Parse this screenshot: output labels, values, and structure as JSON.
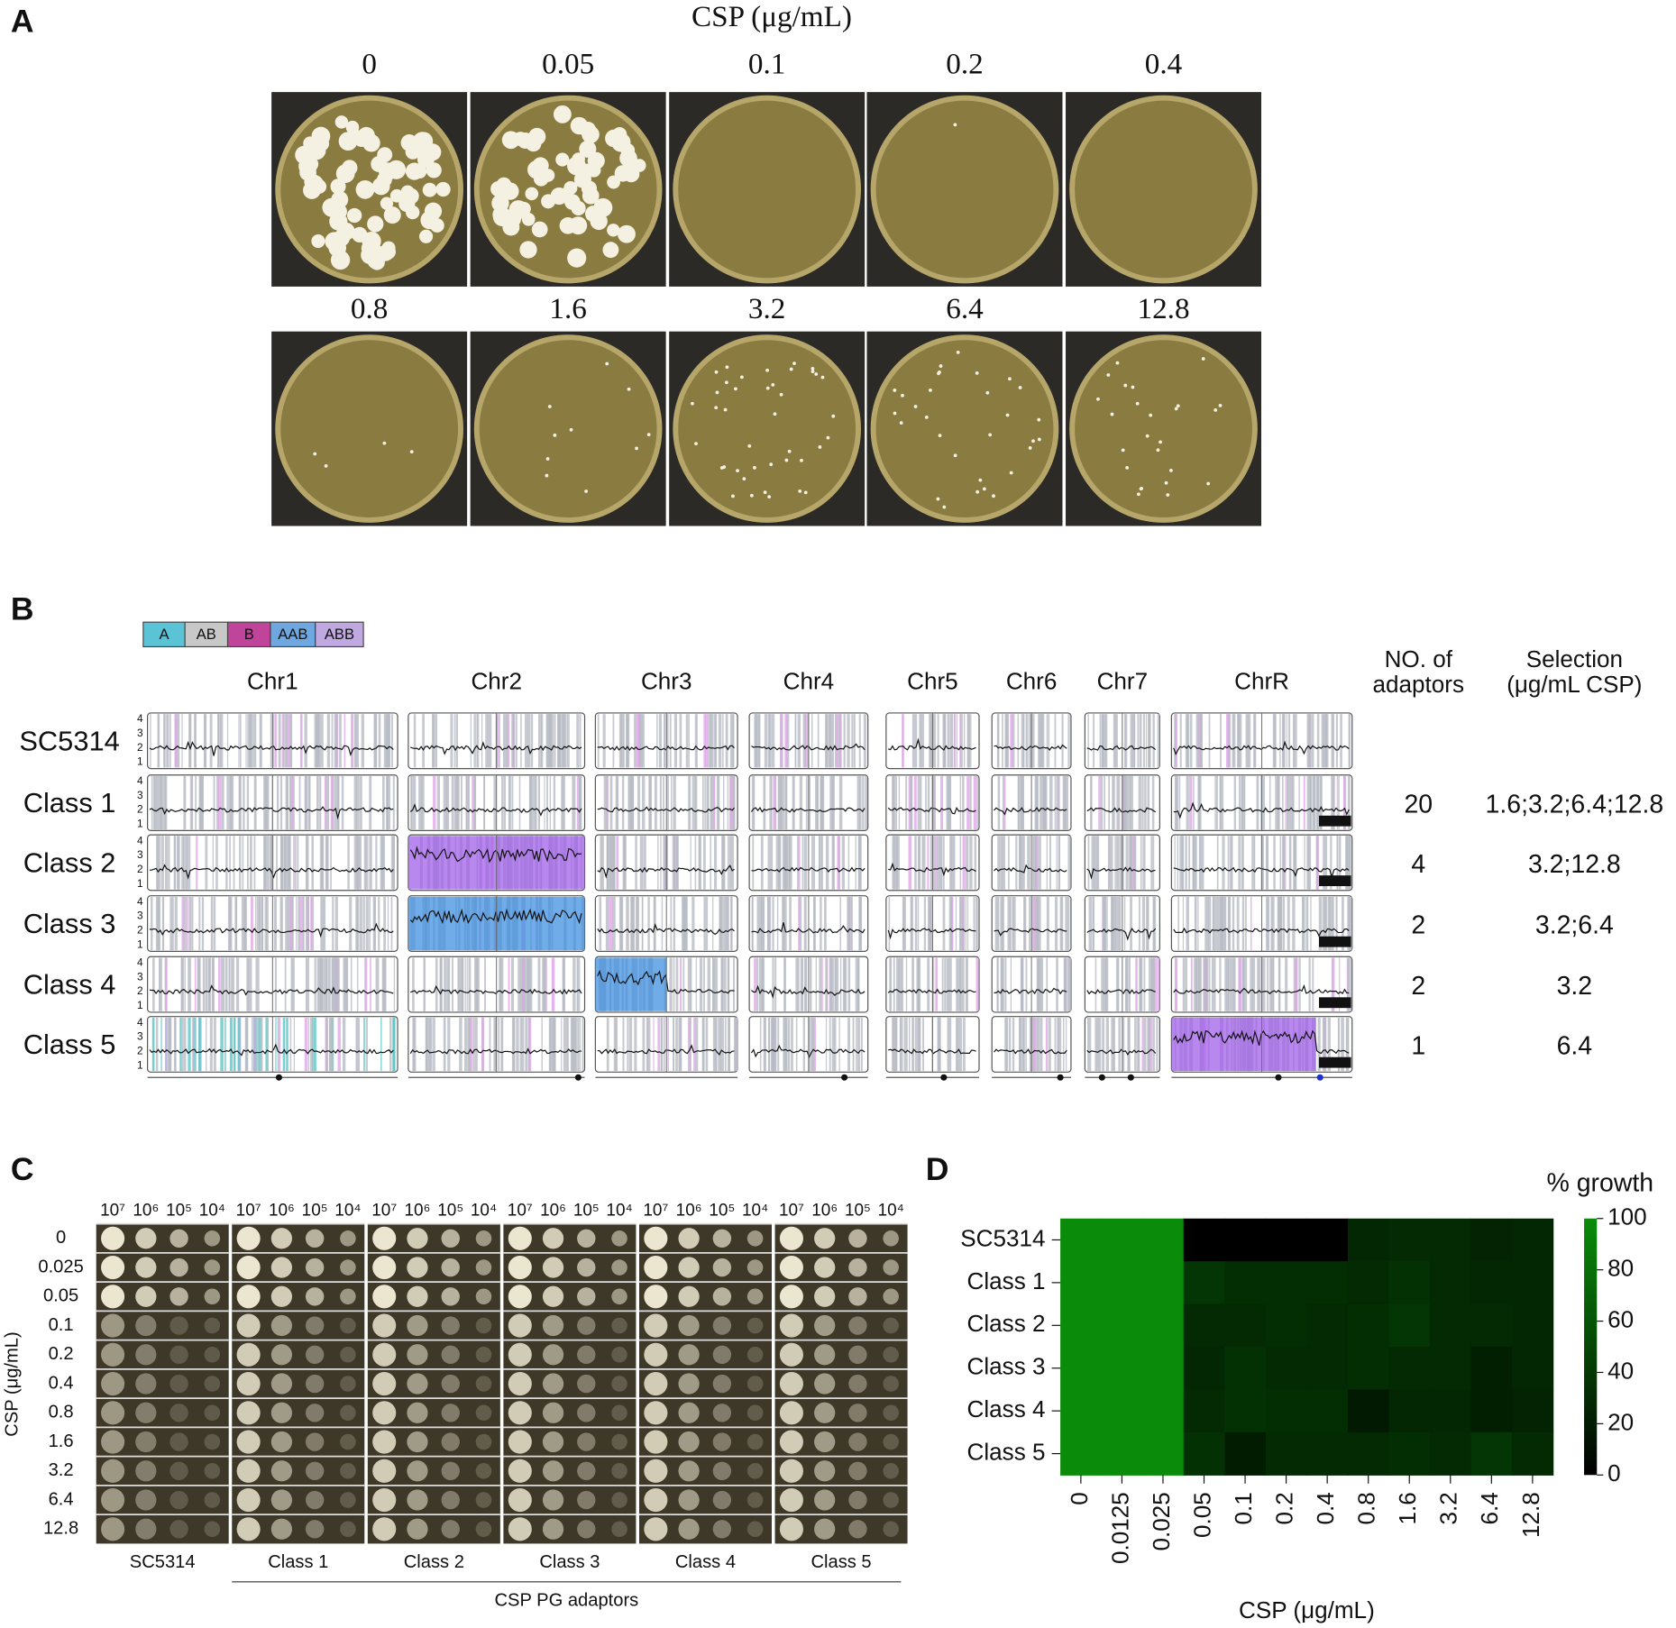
{
  "panel_a": {
    "label": "A",
    "title": "CSP (μg/mL)",
    "concentrations": [
      "0",
      "0.05",
      "0.1",
      "0.2",
      "0.4",
      "0.8",
      "1.6",
      "3.2",
      "6.4",
      "12.8"
    ]
  },
  "panel_b": {
    "label": "B",
    "legend": [
      "A",
      "AB",
      "B",
      "AAB",
      "ABB"
    ],
    "chromosomes": [
      "Chr1",
      "Chr2",
      "Chr3",
      "Chr4",
      "Chr5",
      "Chr6",
      "Chr7",
      "ChrR"
    ],
    "copy_ticks": [
      4,
      3,
      2,
      1
    ],
    "header_adaptors": [
      "NO. of",
      "adaptors"
    ],
    "header_selection": [
      "Selection",
      "(μg/mL CSP)"
    ],
    "rows": [
      {
        "strain": "SC5314"
      },
      {
        "strain": "Class 1",
        "adaptors": 20,
        "selection": "1.6;3.2;6.4;12.8"
      },
      {
        "strain": "Class 2",
        "adaptors": 4,
        "selection": "3.2;12.8"
      },
      {
        "strain": "Class 3",
        "adaptors": 2,
        "selection": "3.2;6.4"
      },
      {
        "strain": "Class 4",
        "adaptors": 2,
        "selection": "3.2"
      },
      {
        "strain": "Class 5",
        "adaptors": 1,
        "selection": "6.4"
      }
    ]
  },
  "panel_c": {
    "label": "C",
    "dilutions": [
      "10⁷",
      "10⁶",
      "10⁵",
      "10⁴"
    ],
    "concentrations": [
      "0",
      "0.025",
      "0.05",
      "0.1",
      "0.2",
      "0.4",
      "0.8",
      "1.6",
      "3.2",
      "6.4",
      "12.8"
    ],
    "ylabel": "CSP (μg/mL)",
    "strains": [
      "SC5314",
      "Class 1",
      "Class 2",
      "Class 3",
      "Class 4",
      "Class 5"
    ],
    "group_label": "CSP PG adaptors"
  },
  "chart_data": {
    "type": "heatmap",
    "label": "D",
    "rows": [
      "SC5314",
      "Class 1",
      "Class 2",
      "Class 3",
      "Class 4",
      "Class 5"
    ],
    "columns": [
      "0",
      "0.0125",
      "0.025",
      "0.05",
      "0.1",
      "0.2",
      "0.4",
      "0.8",
      "1.6",
      "3.2",
      "6.4",
      "12.8"
    ],
    "values": [
      [
        100,
        100,
        100,
        0,
        0,
        0,
        0,
        28,
        30,
        30,
        25,
        28
      ],
      [
        100,
        100,
        100,
        38,
        32,
        33,
        32,
        30,
        35,
        30,
        28,
        28
      ],
      [
        100,
        100,
        100,
        30,
        30,
        32,
        30,
        32,
        38,
        30,
        30,
        28
      ],
      [
        100,
        100,
        100,
        28,
        35,
        30,
        30,
        32,
        30,
        30,
        22,
        28
      ],
      [
        100,
        100,
        100,
        30,
        35,
        32,
        32,
        18,
        28,
        28,
        22,
        25
      ],
      [
        100,
        100,
        100,
        35,
        20,
        30,
        30,
        30,
        32,
        30,
        38,
        30
      ]
    ],
    "xlabel": "CSP (μg/mL)",
    "colorbar_title": "% growth",
    "zlim": [
      0,
      100
    ],
    "zticks": [
      0,
      20,
      40,
      60,
      80,
      100
    ],
    "colormap": [
      "#000000",
      "#0a8c0a"
    ]
  }
}
